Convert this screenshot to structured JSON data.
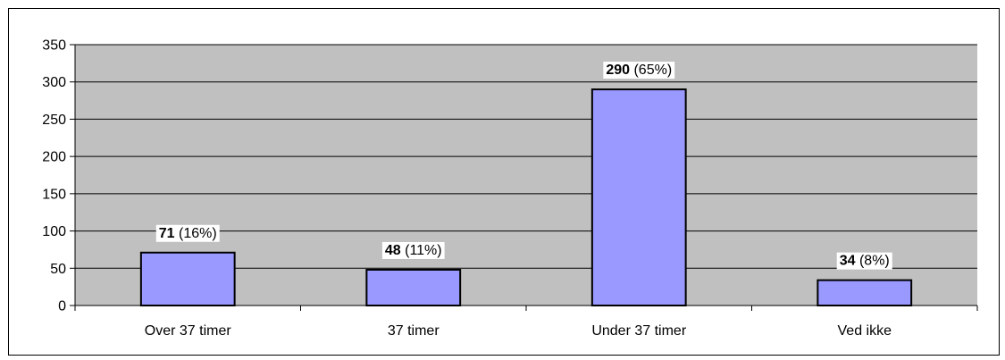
{
  "chart_data": {
    "type": "bar",
    "title": "",
    "xlabel": "",
    "ylabel": "",
    "categories": [
      "Over 37 timer",
      "37 timer",
      "Under 37 timer",
      "Ved ikke"
    ],
    "values": [
      71,
      48,
      290,
      34
    ],
    "percent_labels": [
      "(16%)",
      "(11%)",
      "(65%)",
      "(8%)"
    ],
    "ylim": [
      0,
      350
    ],
    "yticks": [
      0,
      50,
      100,
      150,
      200,
      250,
      300,
      350
    ],
    "grid": true,
    "legend": "none",
    "colors": {
      "plot_background": "#c0c0c0",
      "bar_fill": "#9999ff",
      "bar_stroke": "#000000",
      "gridline": "#000000"
    }
  }
}
